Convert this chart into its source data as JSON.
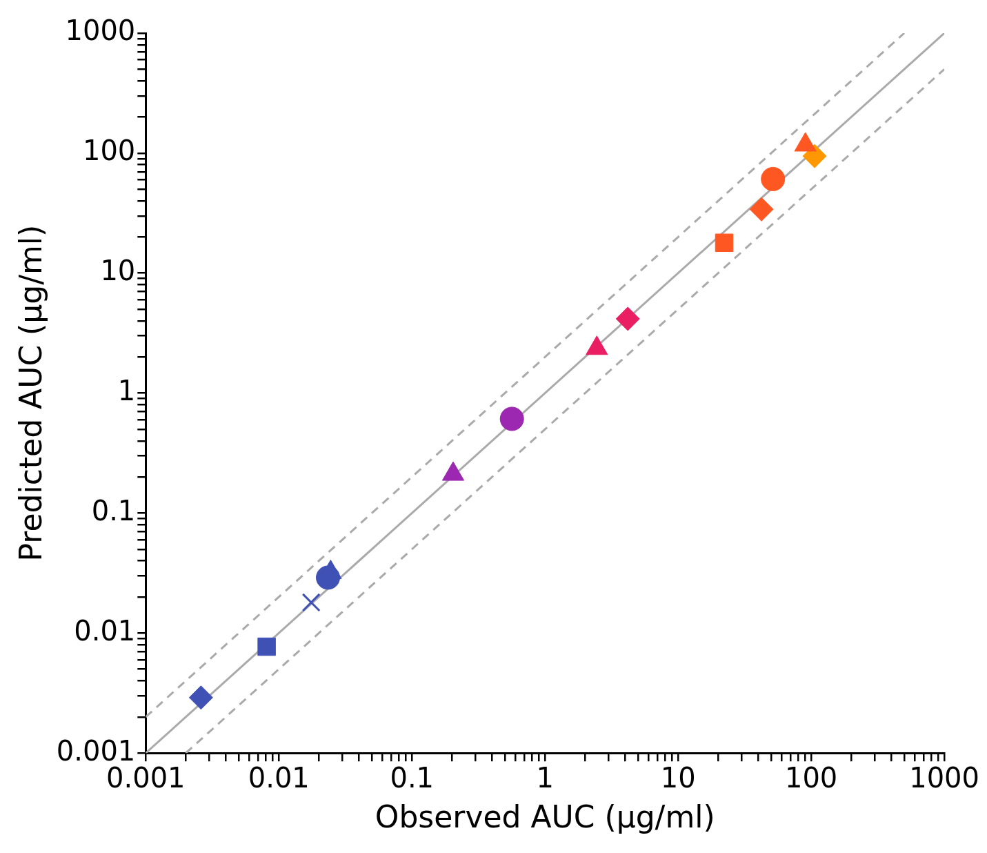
{
  "chart_data": {
    "type": "scatter",
    "xlabel": "Observed AUC (µg/ml)",
    "ylabel": "Predicted AUC (µg/ml)",
    "log": "xy",
    "grid": false,
    "legend": false,
    "xlim": [
      0.001,
      1000
    ],
    "ylim": [
      0.001,
      1000
    ],
    "xticks": [
      0.001,
      {
        "value": 0.002,
        "label": null
      },
      {
        "value": 0.003,
        "label": null
      },
      {
        "value": 0.004,
        "label": null
      },
      {
        "value": 0.005,
        "label": null
      },
      {
        "value": 0.006,
        "label": null
      },
      {
        "value": 0.007,
        "label": null
      },
      {
        "value": 0.008,
        "label": null
      },
      {
        "value": 0.009,
        "label": null
      },
      0.01,
      {
        "value": 0.02,
        "label": null
      },
      {
        "value": 0.03,
        "label": null
      },
      {
        "value": 0.04,
        "label": null
      },
      {
        "value": 0.05,
        "label": null
      },
      {
        "value": 0.06,
        "label": null
      },
      {
        "value": 0.07,
        "label": null
      },
      {
        "value": 0.08,
        "label": null
      },
      {
        "value": 0.09,
        "label": null
      },
      0.1,
      {
        "value": 0.2,
        "label": null
      },
      {
        "value": 0.3,
        "label": null
      },
      {
        "value": 0.4,
        "label": null
      },
      {
        "value": 0.5,
        "label": null
      },
      {
        "value": 0.6,
        "label": null
      },
      {
        "value": 0.7,
        "label": null
      },
      {
        "value": 0.8,
        "label": null
      },
      {
        "value": 0.9,
        "label": null
      },
      1,
      {
        "value": 2,
        "label": null
      },
      {
        "value": 3,
        "label": null
      },
      {
        "value": 4,
        "label": null
      },
      {
        "value": 5,
        "label": null
      },
      {
        "value": 6,
        "label": null
      },
      {
        "value": 7,
        "label": null
      },
      {
        "value": 8,
        "label": null
      },
      {
        "value": 9,
        "label": null
      },
      10,
      {
        "value": 20,
        "label": null
      },
      {
        "value": 30,
        "label": null
      },
      {
        "value": 40,
        "label": null
      },
      {
        "value": 50,
        "label": null
      },
      {
        "value": 60,
        "label": null
      },
      {
        "value": 70,
        "label": null
      },
      {
        "value": 80,
        "label": null
      },
      {
        "value": 90,
        "label": null
      },
      100,
      {
        "value": 200,
        "label": null
      },
      {
        "value": 300,
        "label": null
      },
      {
        "value": 400,
        "label": null
      },
      {
        "value": 500,
        "label": null
      },
      {
        "value": 600,
        "label": null
      },
      {
        "value": 700,
        "label": null
      },
      {
        "value": 800,
        "label": null
      },
      {
        "value": 900,
        "label": null
      },
      1000
    ],
    "yticks": [
      0.001,
      {
        "value": 0.002,
        "label": null
      },
      {
        "value": 0.003,
        "label": null
      },
      {
        "value": 0.004,
        "label": null
      },
      {
        "value": 0.005,
        "label": null
      },
      {
        "value": 0.006,
        "label": null
      },
      {
        "value": 0.007,
        "label": null
      },
      {
        "value": 0.008,
        "label": null
      },
      {
        "value": 0.009,
        "label": null
      },
      0.01,
      {
        "value": 0.02,
        "label": null
      },
      {
        "value": 0.03,
        "label": null
      },
      {
        "value": 0.04,
        "label": null
      },
      {
        "value": 0.05,
        "label": null
      },
      {
        "value": 0.06,
        "label": null
      },
      {
        "value": 0.07,
        "label": null
      },
      {
        "value": 0.08,
        "label": null
      },
      {
        "value": 0.09,
        "label": null
      },
      0.1,
      {
        "value": 0.2,
        "label": null
      },
      {
        "value": 0.3,
        "label": null
      },
      {
        "value": 0.4,
        "label": null
      },
      {
        "value": 0.5,
        "label": null
      },
      {
        "value": 0.6,
        "label": null
      },
      {
        "value": 0.7,
        "label": null
      },
      {
        "value": 0.8,
        "label": null
      },
      {
        "value": 0.9,
        "label": null
      },
      1,
      {
        "value": 2,
        "label": null
      },
      {
        "value": 3,
        "label": null
      },
      {
        "value": 4,
        "label": null
      },
      {
        "value": 5,
        "label": null
      },
      {
        "value": 6,
        "label": null
      },
      {
        "value": 7,
        "label": null
      },
      {
        "value": 8,
        "label": null
      },
      {
        "value": 9,
        "label": null
      },
      10,
      {
        "value": 20,
        "label": null
      },
      {
        "value": 30,
        "label": null
      },
      {
        "value": 40,
        "label": null
      },
      {
        "value": 50,
        "label": null
      },
      {
        "value": 60,
        "label": null
      },
      {
        "value": 70,
        "label": null
      },
      {
        "value": 80,
        "label": null
      },
      {
        "value": 90,
        "label": null
      },
      100,
      {
        "value": 200,
        "label": null
      },
      {
        "value": 300,
        "label": null
      },
      {
        "value": 400,
        "label": null
      },
      {
        "value": 500,
        "label": null
      },
      {
        "value": 600,
        "label": null
      },
      {
        "value": 700,
        "label": null
      },
      {
        "value": 800,
        "label": null
      },
      {
        "value": 900,
        "label": null
      },
      1000
    ],
    "series": [
      {
        "type": "line",
        "color": "#aaaaaa",
        "line_style": "solid",
        "marker": "none",
        "x": [
          0.001,
          1000
        ],
        "values": [
          0.001,
          1000
        ]
      },
      {
        "type": "line",
        "color": "#aaaaaa",
        "line_style": "dashed",
        "marker": "none",
        "x": [
          0.001,
          500
        ],
        "values": [
          0.002,
          1000
        ]
      },
      {
        "type": "line",
        "color": "#aaaaaa",
        "line_style": "dashed",
        "marker": "none",
        "x": [
          0.002,
          1000
        ],
        "values": [
          0.001,
          500
        ]
      },
      {
        "color": "#3f51b5",
        "marker": "diamond",
        "x": [
          0.0026
        ],
        "values": [
          0.0029
        ]
      },
      {
        "color": "#3f51b5",
        "marker": "square",
        "x": [
          0.0081
        ],
        "values": [
          0.0077
        ]
      },
      {
        "color": "#3f51b5",
        "marker": "cross",
        "x": [
          0.0175
        ],
        "values": [
          0.018
        ]
      },
      {
        "color": "#3f51b5",
        "marker": "triangle",
        "x": [
          0.0245
        ],
        "values": [
          0.032
        ]
      },
      {
        "color": "#3f51b5",
        "marker": "circle",
        "x": [
          0.0234
        ],
        "values": [
          0.029
        ]
      },
      {
        "color": "#9c27b0",
        "marker": "triangle",
        "x": [
          0.204
        ],
        "values": [
          0.211
        ]
      },
      {
        "color": "#9c27b0",
        "marker": "circle",
        "x": [
          0.564
        ],
        "values": [
          0.61
        ]
      },
      {
        "color": "#e91e63",
        "marker": "triangle",
        "x": [
          2.45
        ],
        "values": [
          2.36
        ]
      },
      {
        "color": "#e91e63",
        "marker": "diamond",
        "x": [
          4.19
        ],
        "values": [
          4.16
        ]
      },
      {
        "color": "#ff5722",
        "marker": "square",
        "x": [
          22.2
        ],
        "values": [
          17.9
        ]
      },
      {
        "color": "#ff5722",
        "marker": "diamond",
        "x": [
          42.3
        ],
        "values": [
          34
        ]
      },
      {
        "color": "#ff5722",
        "marker": "circle",
        "x": [
          51.6
        ],
        "values": [
          60.8
        ]
      },
      {
        "color": "#ff5722",
        "marker": "triangle",
        "x": [
          90.4
        ],
        "values": [
          117
        ]
      },
      {
        "color": "#ff9800",
        "marker": "diamond",
        "x": [
          106
        ],
        "values": [
          94.4
        ]
      }
    ]
  }
}
